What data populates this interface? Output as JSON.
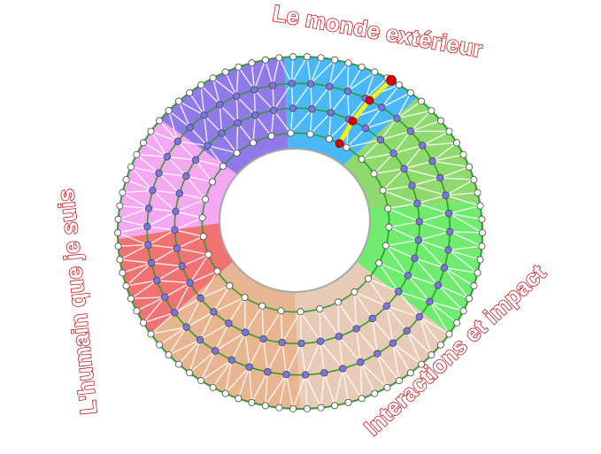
{
  "labels": {
    "top": "Le monde extérieur",
    "left": "L'humain que je suis",
    "right": "Interactions et impact"
  },
  "colors": {
    "label_text": "#c8161d",
    "ring_line": "#2e9e2e",
    "mesh_line": "#ffffff",
    "outer_node": "#ffffff",
    "inner_node": "#7b74e6",
    "path_highlight": "#f5f01a",
    "path_node": "#e00000",
    "hole_border": "#a8a8a8"
  },
  "sectors": [
    {
      "color": "#4ab8f6"
    },
    {
      "color": "#8fd96f"
    },
    {
      "color": "#6feb70"
    },
    {
      "color": "#e8cbb7"
    },
    {
      "color": "#e8b591"
    },
    {
      "color": "#f07272"
    },
    {
      "color": "#f5a8f2"
    },
    {
      "color": "#9079e8"
    }
  ]
}
